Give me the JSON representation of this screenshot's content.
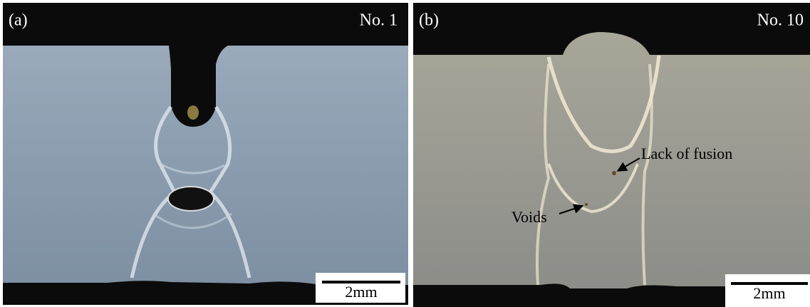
{
  "panels": [
    {
      "label": "(a)",
      "sample": "No. 1",
      "scale_bar": "2mm"
    },
    {
      "label": "(b)",
      "sample": "No. 10",
      "scale_bar": "2mm",
      "annotations": [
        "Lack of fusion",
        "Voids"
      ]
    }
  ]
}
